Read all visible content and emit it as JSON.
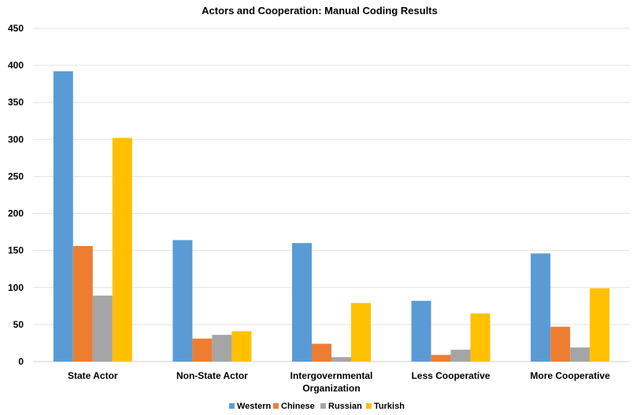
{
  "chart_data": {
    "type": "bar",
    "title": "Actors and Cooperation: Manual Coding Results",
    "xlabel": "",
    "ylabel": "",
    "ylim": [
      0,
      450
    ],
    "yticks": [
      "0",
      "50",
      "100",
      "150",
      "200",
      "250",
      "300",
      "350",
      "400",
      "450"
    ],
    "categories": [
      [
        "State Actor"
      ],
      [
        "Non-State Actor"
      ],
      [
        "Intergovernmental",
        "Organization"
      ],
      [
        "Less Cooperative"
      ],
      [
        "More Cooperative"
      ]
    ],
    "series": [
      {
        "name": "Western",
        "color": "#5B9BD5",
        "values": [
          392,
          164,
          160,
          82,
          146
        ]
      },
      {
        "name": "Chinese",
        "color": "#ED7D31",
        "values": [
          156,
          31,
          24,
          9,
          47
        ]
      },
      {
        "name": "Russian",
        "color": "#A5A5A5",
        "values": [
          89,
          36,
          6,
          16,
          19
        ]
      },
      {
        "name": "Turkish",
        "color": "#FFC000",
        "values": [
          302,
          41,
          79,
          65,
          99
        ]
      }
    ],
    "grid": true,
    "legend": "bottom"
  }
}
